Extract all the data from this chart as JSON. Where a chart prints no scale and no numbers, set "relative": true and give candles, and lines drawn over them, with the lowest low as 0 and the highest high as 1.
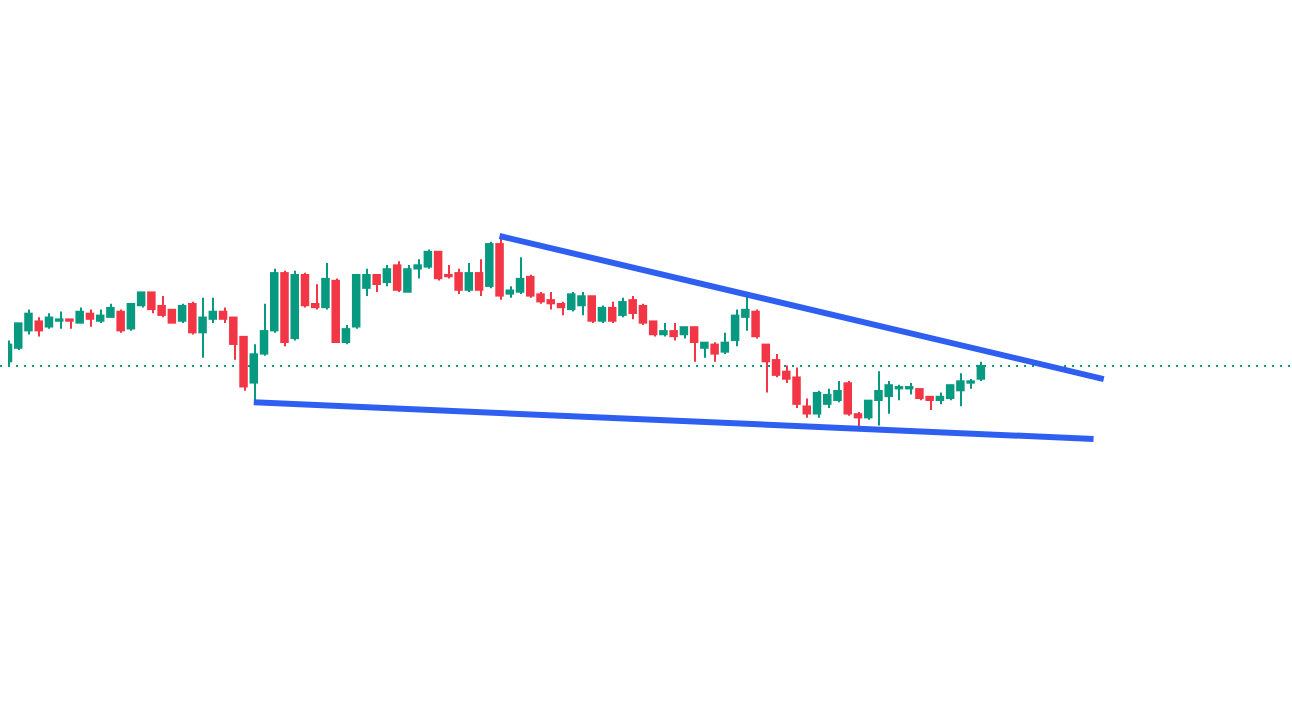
{
  "chart_data": {
    "type": "candlestick",
    "relative": true,
    "tick_labels": false,
    "grid": false,
    "legend": false,
    "categories": [
      null,
      null,
      null,
      null,
      null,
      null,
      null,
      null,
      null,
      null,
      null,
      null,
      null,
      null,
      null,
      null,
      null,
      null,
      null,
      null,
      null,
      null,
      null,
      null,
      null,
      null,
      null,
      null,
      null,
      null,
      null,
      null,
      null,
      null,
      null,
      null,
      null,
      null,
      null,
      null,
      null,
      null,
      null,
      null,
      null,
      null,
      null,
      null,
      null,
      null,
      null,
      null,
      null,
      null,
      null,
      null,
      null,
      null,
      null,
      null,
      null,
      null,
      null,
      null,
      null,
      null,
      null,
      null,
      null,
      null,
      null,
      null,
      null,
      null,
      null,
      null,
      null,
      null,
      null,
      null,
      null,
      null,
      null,
      null,
      null,
      null,
      null,
      null,
      null,
      null,
      null,
      null,
      null,
      null,
      null,
      null,
      null,
      null,
      null,
      null,
      null,
      null,
      null,
      null,
      null,
      null,
      null,
      null,
      null
    ],
    "colors": [
      "#089981",
      "#089981",
      "#089981",
      "#f23645",
      "#089981",
      "#089981",
      "#f23645",
      "#089981",
      "#f23645",
      "#089981",
      "#089981",
      "#f23645",
      "#089981",
      "#089981",
      "#f23645",
      "#f23645",
      "#f23645",
      "#089981",
      "#f23645",
      "#089981",
      "#089981",
      "#f23645",
      "#f23645",
      "#f23645",
      "#089981",
      "#089981",
      "#089981",
      "#f23645",
      "#089981",
      "#f23645",
      "#f23645",
      "#089981",
      "#f23645",
      "#089981",
      "#089981",
      "#089981",
      "#f23645",
      "#089981",
      "#f23645",
      "#089981",
      "#089981",
      "#089981",
      "#f23645",
      "#f23645",
      "#f23645",
      "#089981",
      "#f23645",
      "#089981",
      "#f23645",
      "#089981",
      "#089981",
      "#f23645",
      "#f23645",
      "#f23645",
      "#f23645",
      "#089981",
      "#089981",
      "#f23645",
      "#089981",
      "#f23645",
      "#089981",
      "#f23645",
      "#f23645",
      "#f23645",
      "#089981",
      "#f23645",
      "#089981",
      "#f23645",
      "#089981",
      "#f23645",
      "#089981",
      "#089981",
      "#089981",
      "#f23645",
      "#f23645",
      "#f23645",
      "#f23645",
      "#f23645",
      "#f23645",
      "#089981",
      "#089981",
      "#089981",
      "#f23645",
      "#f23645",
      "#089981",
      "#089981",
      "#089981",
      "#089981",
      "#089981",
      "#f23645",
      "#f23645",
      "#089981",
      "#089981",
      "#089981",
      "#089981",
      "#089981",
      null,
      null,
      null,
      null,
      null,
      null,
      null,
      null,
      null,
      null,
      null,
      null,
      null
    ],
    "ohlc": [
      [
        0.35,
        0.46,
        0.33,
        0.44
      ],
      [
        0.42,
        0.55,
        0.41,
        0.55
      ],
      [
        0.51,
        0.62,
        0.49,
        0.6
      ],
      [
        0.56,
        0.58,
        0.48,
        0.51
      ],
      [
        0.53,
        0.6,
        0.52,
        0.58
      ],
      [
        0.56,
        0.61,
        0.52,
        0.57
      ],
      [
        0.57,
        0.57,
        0.52,
        0.56
      ],
      [
        0.55,
        0.63,
        0.55,
        0.61
      ],
      [
        0.6,
        0.62,
        0.53,
        0.57
      ],
      [
        0.56,
        0.62,
        0.55,
        0.59
      ],
      [
        0.58,
        0.65,
        0.58,
        0.63
      ],
      [
        0.61,
        0.62,
        0.5,
        0.51
      ],
      [
        0.52,
        0.65,
        0.51,
        0.65
      ],
      [
        0.64,
        0.71,
        0.63,
        0.71
      ],
      [
        0.71,
        0.71,
        0.6,
        0.62
      ],
      [
        0.64,
        0.69,
        0.58,
        0.59
      ],
      [
        0.62,
        0.62,
        0.55,
        0.55
      ],
      [
        0.56,
        0.65,
        0.55,
        0.64
      ],
      [
        0.65,
        0.66,
        0.49,
        0.5
      ],
      [
        0.5,
        0.68,
        0.37,
        0.58
      ],
      [
        0.57,
        0.68,
        0.55,
        0.61
      ],
      [
        0.61,
        0.63,
        0.55,
        0.57
      ],
      [
        0.58,
        0.58,
        0.36,
        0.44
      ],
      [
        0.48,
        0.48,
        0.2,
        0.22
      ],
      [
        0.24,
        0.44,
        0.14,
        0.39
      ],
      [
        0.39,
        0.65,
        0.38,
        0.51
      ],
      [
        0.51,
        0.83,
        0.5,
        0.81
      ],
      [
        0.81,
        0.82,
        0.43,
        0.45
      ],
      [
        0.47,
        0.82,
        0.46,
        0.8
      ],
      [
        0.8,
        0.81,
        0.63,
        0.64
      ],
      [
        0.65,
        0.75,
        0.62,
        0.63
      ],
      [
        0.63,
        0.86,
        0.62,
        0.78
      ],
      [
        0.77,
        0.78,
        0.45,
        0.45
      ],
      [
        0.45,
        0.54,
        0.44,
        0.52
      ],
      [
        0.53,
        0.8,
        0.52,
        0.8
      ],
      [
        0.73,
        0.83,
        0.69,
        0.8
      ],
      [
        0.8,
        0.8,
        0.71,
        0.75
      ],
      [
        0.76,
        0.85,
        0.74,
        0.83
      ],
      [
        0.85,
        0.87,
        0.71,
        0.72
      ],
      [
        0.71,
        0.85,
        0.71,
        0.83
      ],
      [
        0.83,
        0.88,
        0.78,
        0.85
      ],
      [
        0.84,
        0.93,
        0.83,
        0.92
      ],
      [
        0.92,
        0.92,
        0.77,
        0.78
      ],
      [
        0.8,
        0.85,
        0.78,
        0.79
      ],
      [
        0.81,
        0.83,
        0.7,
        0.72
      ],
      [
        0.72,
        0.86,
        0.71,
        0.81
      ],
      [
        0.81,
        0.88,
        0.69,
        0.72
      ],
      [
        0.74,
        0.97,
        0.73,
        0.96
      ],
      [
        0.96,
        1,
        0.67,
        0.69
      ],
      [
        0.7,
        0.74,
        0.68,
        0.72
      ],
      [
        0.71,
        0.89,
        0.7,
        0.78
      ],
      [
        0.79,
        0.8,
        0.68,
        0.69
      ],
      [
        0.7,
        0.71,
        0.65,
        0.66
      ],
      [
        0.67,
        0.71,
        0.62,
        0.65
      ],
      [
        0.65,
        0.66,
        0.59,
        0.63
      ],
      [
        0.62,
        0.71,
        0.61,
        0.7
      ],
      [
        0.64,
        0.71,
        0.59,
        0.69
      ],
      [
        0.69,
        0.69,
        0.55,
        0.56
      ],
      [
        0.56,
        0.64,
        0.55,
        0.63
      ],
      [
        0.63,
        0.66,
        0.55,
        0.56
      ],
      [
        0.59,
        0.68,
        0.58,
        0.66
      ],
      [
        0.67,
        0.69,
        0.57,
        0.6
      ],
      [
        0.64,
        0.65,
        0.54,
        0.55
      ],
      [
        0.56,
        0.56,
        0.48,
        0.49
      ],
      [
        0.49,
        0.55,
        0.48,
        0.51
      ],
      [
        0.51,
        0.55,
        0.46,
        0.48
      ],
      [
        0.49,
        0.53,
        0.47,
        0.53
      ],
      [
        0.53,
        0.53,
        0.35,
        0.45
      ],
      [
        0.42,
        0.45,
        0.37,
        0.45
      ],
      [
        0.44,
        0.45,
        0.35,
        0.39
      ],
      [
        0.4,
        0.5,
        0.39,
        0.45
      ],
      [
        0.46,
        0.62,
        0.43,
        0.59
      ],
      [
        0.58,
        0.69,
        0.51,
        0.62
      ],
      [
        0.61,
        0.62,
        0.47,
        0.48
      ],
      [
        0.44,
        0.44,
        0.19,
        0.35
      ],
      [
        0.36,
        0.39,
        0.27,
        0.28
      ],
      [
        0.3,
        0.33,
        0.24,
        0.26
      ],
      [
        0.27,
        0.32,
        0.11,
        0.13
      ],
      [
        0.12,
        0.16,
        0.06,
        0.08
      ],
      [
        0.08,
        0.2,
        0.06,
        0.19
      ],
      [
        0.13,
        0.21,
        0.11,
        0.18
      ],
      [
        0.15,
        0.25,
        0.14,
        0.2
      ],
      [
        0.24,
        0.25,
        0.07,
        0.08
      ],
      [
        0.08,
        0.09,
        0,
        0.06
      ],
      [
        0.06,
        0.15,
        0.05,
        0.15
      ],
      [
        0.15,
        0.3,
        0.02,
        0.2
      ],
      [
        0.17,
        0.25,
        0.08,
        0.23
      ],
      [
        0.21,
        0.23,
        0.15,
        0.22
      ],
      [
        0.21,
        0.24,
        0.18,
        0.22
      ],
      [
        0.21,
        0.21,
        0.15,
        0.16
      ],
      [
        0.17,
        0.17,
        0.1,
        0.15
      ],
      [
        0.15,
        0.19,
        0.13,
        0.17
      ],
      [
        0.16,
        0.23,
        0.15,
        0.23
      ],
      [
        0.2,
        0.29,
        0.12,
        0.25
      ],
      [
        0.25,
        0.26,
        0.21,
        0.25
      ],
      [
        0.26,
        0.35,
        0.25,
        0.33
      ],
      null,
      null,
      null,
      null,
      null,
      null,
      null,
      null,
      null,
      null,
      null,
      null,
      null
    ],
    "series": [
      {
        "type": "line",
        "values": [
          null,
          null,
          null,
          null,
          null,
          null,
          null,
          null,
          null,
          null,
          null,
          null,
          null,
          null,
          null,
          null,
          null,
          null,
          null,
          null,
          null,
          null,
          null,
          null,
          null,
          null,
          null,
          null,
          null,
          null,
          null,
          null,
          null,
          null,
          null,
          null,
          null,
          null,
          null,
          null,
          null,
          null,
          null,
          null,
          null,
          null,
          null,
          null,
          1,
          null,
          null,
          null,
          null,
          null,
          null,
          null,
          null,
          null,
          null,
          null,
          null,
          null,
          null,
          null,
          null,
          null,
          null,
          null,
          null,
          null,
          null,
          null,
          null,
          null,
          null,
          null,
          null,
          null,
          null,
          null,
          null,
          null,
          null,
          null,
          null,
          null,
          null,
          null,
          null,
          null,
          null,
          null,
          null,
          null,
          null,
          null,
          null,
          null,
          null,
          null,
          null,
          null,
          null,
          null,
          null,
          null,
          null,
          0.26,
          null
        ],
        "color": "#2f5ff0"
      },
      {
        "type": "line",
        "values": [
          null,
          null,
          null,
          null,
          null,
          null,
          null,
          null,
          null,
          null,
          null,
          null,
          null,
          null,
          null,
          null,
          null,
          null,
          null,
          null,
          null,
          null,
          null,
          null,
          0.14,
          null,
          null,
          null,
          null,
          null,
          null,
          null,
          null,
          null,
          null,
          null,
          null,
          null,
          null,
          null,
          null,
          null,
          null,
          null,
          null,
          null,
          null,
          null,
          null,
          null,
          null,
          null,
          null,
          null,
          null,
          null,
          null,
          null,
          null,
          null,
          null,
          null,
          null,
          null,
          null,
          null,
          null,
          null,
          null,
          null,
          null,
          null,
          null,
          null,
          null,
          null,
          null,
          null,
          null,
          null,
          null,
          null,
          null,
          null,
          null,
          null,
          null,
          null,
          null,
          null,
          null,
          null,
          null,
          null,
          null,
          null,
          null,
          null,
          null,
          null,
          null,
          null,
          null,
          null,
          null,
          null,
          -0.05,
          null,
          null
        ],
        "color": "#2f5ff0"
      }
    ],
    "ref_lines": [
      {
        "axis": "y",
        "value": 0.327,
        "color": "#089981",
        "line_style": "dotted"
      }
    ]
  }
}
